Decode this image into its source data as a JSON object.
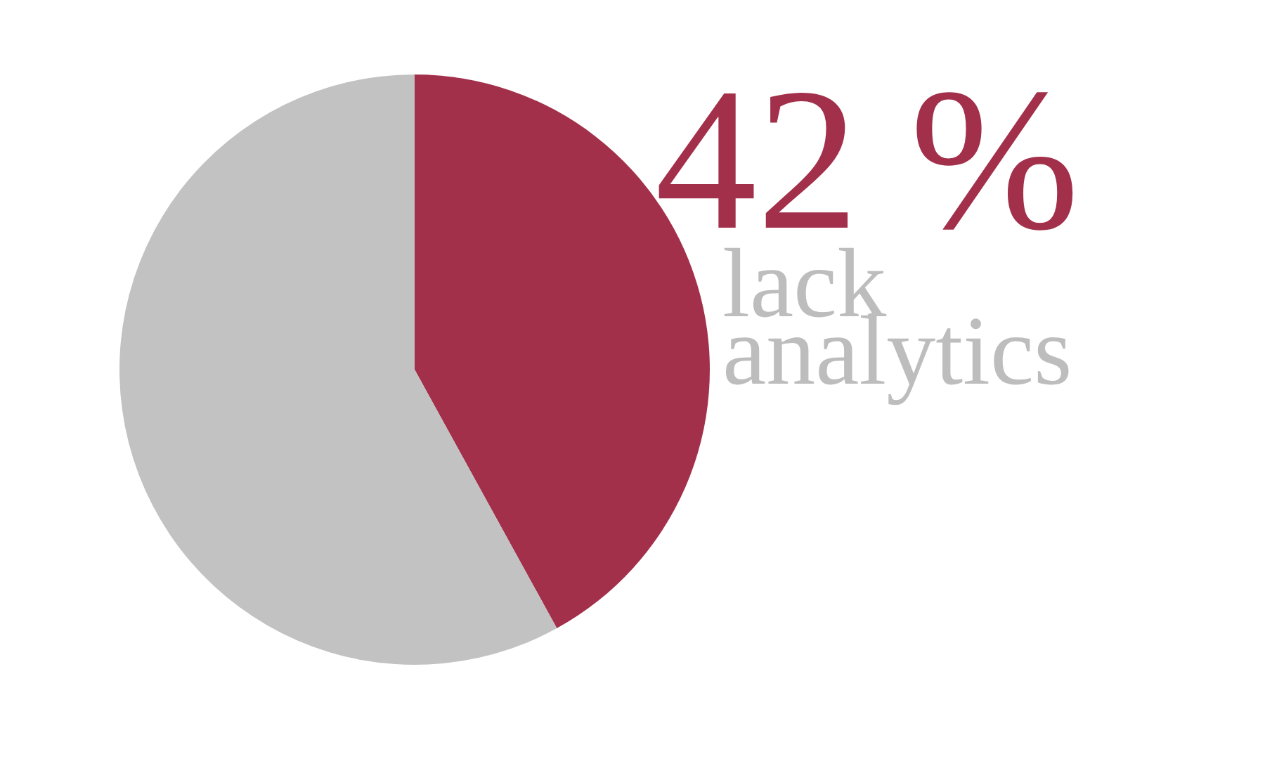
{
  "chart_data": {
    "type": "pie",
    "categories": [
      "lack analytics",
      null
    ],
    "values": [
      42,
      58
    ],
    "colors": [
      "#a3304a",
      "#c2c2c2"
    ],
    "value_labels": [
      "42 %",
      null
    ]
  }
}
